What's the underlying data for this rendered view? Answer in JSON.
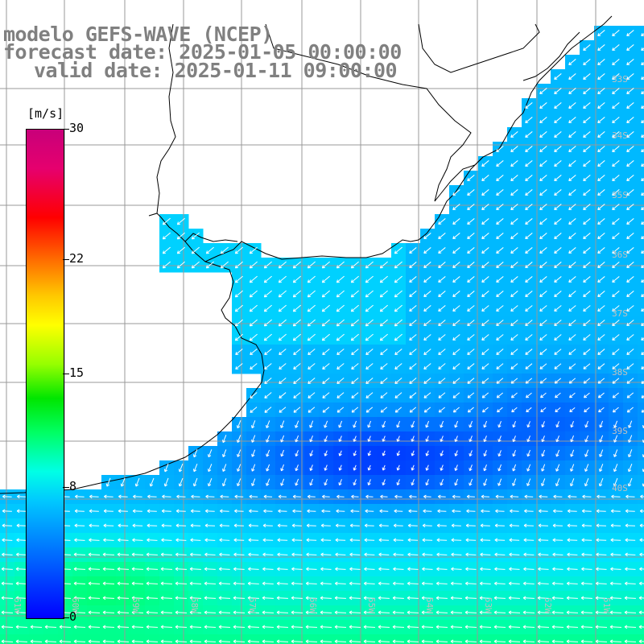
{
  "title": {
    "line1": "modelo GEFS-WAVE (NCEP)",
    "line2": "forecast date: 2025-01-05 00:00:00",
    "line3": "valid date: 2025-01-11 09:00:00"
  },
  "colorbar": {
    "unit": "[m/s]",
    "ticks": [
      {
        "label": "30",
        "value": 30
      },
      {
        "label": "22",
        "value": 22
      },
      {
        "label": "15",
        "value": 15
      },
      {
        "label": "8",
        "value": 8
      },
      {
        "label": "0",
        "value": 0
      }
    ]
  },
  "map": {
    "lat_labels": [
      "33S",
      "34S",
      "35S",
      "36S",
      "37S",
      "38S",
      "39S",
      "40S"
    ],
    "lon_labels": [
      "61W",
      "60W",
      "59W",
      "58W",
      "57W",
      "56W",
      "55W",
      "54W",
      "53W",
      "52W",
      "51W"
    ],
    "colors": {
      "land": "#ffffff",
      "grid": "#999999",
      "coast": "#000000",
      "arrow": "#ffffff"
    }
  }
}
